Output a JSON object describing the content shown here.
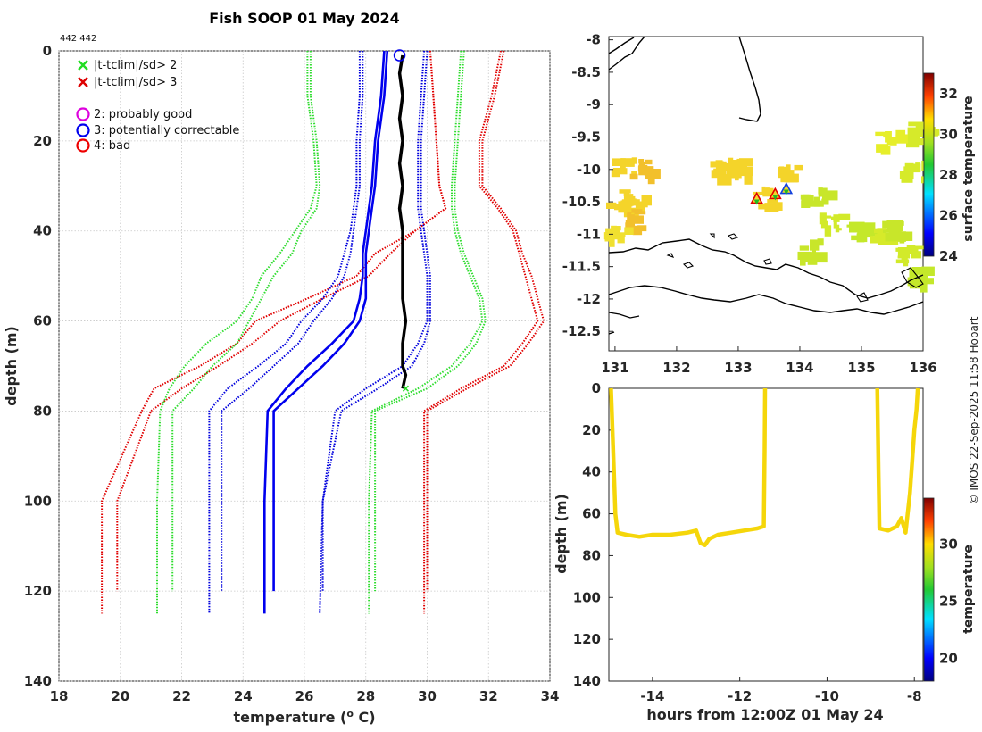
{
  "chart_data": [
    {
      "id": "profile",
      "type": "line",
      "title": "Fish SOOP 01 May 2024",
      "id_label": "442 442",
      "xlabel": "temperature (",
      "xlabel_sup": "o",
      "xlabel_end": " C)",
      "ylabel": "depth (m)",
      "xlim": [
        18,
        34
      ],
      "ylim": [
        140,
        0
      ],
      "xticks": [
        "18",
        "20",
        "22",
        "24",
        "26",
        "28",
        "30",
        "32",
        "34"
      ],
      "yticks": [
        "0",
        "20",
        "40",
        "60",
        "80",
        "100",
        "120",
        "140"
      ],
      "legend": [
        {
          "symbol": "x",
          "color": "#22dd22",
          "label": "|t-tclim|/sd> 2"
        },
        {
          "symbol": "x",
          "color": "#dd0000",
          "label": "|t-tclim|/sd> 3"
        },
        {
          "symbol": "o",
          "color": "#dd00dd",
          "label": "2: probably good"
        },
        {
          "symbol": "o",
          "color": "#0000ee",
          "label": "3: potentially correctable"
        },
        {
          "symbol": "o",
          "color": "#ee0000",
          "label": "4: bad"
        }
      ],
      "series": [
        {
          "name": "clim-3sd-low",
          "color": "#e00000",
          "style": "dotted",
          "x": [
            30.1,
            30.2,
            30.3,
            30.4,
            30.6,
            29.6,
            28.3,
            27.7,
            26.1,
            24.4,
            23.8,
            22.6,
            21.1,
            20.7,
            19.4,
            19.4
          ],
          "y": [
            0,
            10,
            20,
            30,
            35,
            40,
            45,
            50,
            55,
            60,
            65,
            70,
            75,
            80,
            100,
            125
          ]
        },
        {
          "name": "clim-3sd-low-b",
          "color": "#e00000",
          "style": "dotted",
          "x": [
            30.1,
            30.2,
            30.3,
            30.4,
            30.6,
            29.6,
            28.8,
            28.1,
            26.6,
            25.2,
            24.3,
            23.2,
            22.0,
            21.0,
            19.9,
            19.9
          ],
          "y": [
            0,
            10,
            20,
            30,
            35,
            40,
            45,
            50,
            55,
            60,
            65,
            70,
            75,
            80,
            100,
            120
          ]
        },
        {
          "name": "clim-2sd-low",
          "color": "#2fdd2f",
          "style": "dotted",
          "x": [
            26.1,
            26.1,
            26.3,
            26.4,
            26.2,
            25.7,
            25.2,
            24.6,
            24.3,
            23.8,
            22.8,
            22.1,
            21.6,
            21.3,
            21.2,
            21.2
          ],
          "y": [
            0,
            10,
            20,
            30,
            35,
            40,
            45,
            50,
            55,
            60,
            65,
            70,
            75,
            80,
            100,
            125
          ]
        },
        {
          "name": "clim-2sd-low-b",
          "color": "#2fdd2f",
          "style": "dotted",
          "x": [
            26.2,
            26.2,
            26.4,
            26.5,
            26.4,
            25.9,
            25.6,
            25.0,
            24.6,
            24.2,
            23.8,
            23.0,
            22.4,
            21.7,
            21.7,
            21.7
          ],
          "y": [
            0,
            10,
            20,
            30,
            35,
            40,
            45,
            50,
            55,
            60,
            65,
            70,
            75,
            80,
            100,
            120
          ]
        },
        {
          "name": "clim-1sd-low",
          "color": "#0000dd",
          "style": "dotted",
          "x": [
            27.8,
            27.8,
            27.7,
            27.7,
            27.6,
            27.5,
            27.3,
            27.1,
            26.6,
            25.9,
            25.4,
            24.5,
            23.5,
            22.9,
            22.9,
            22.9
          ],
          "y": [
            0,
            10,
            20,
            30,
            35,
            40,
            45,
            50,
            55,
            60,
            65,
            70,
            75,
            80,
            100,
            125
          ]
        },
        {
          "name": "clim-1sd-low-b",
          "color": "#0000dd",
          "style": "dotted",
          "x": [
            27.9,
            27.9,
            27.8,
            27.8,
            27.7,
            27.6,
            27.5,
            27.3,
            26.9,
            26.3,
            25.8,
            25.0,
            24.2,
            23.3,
            23.3,
            23.3
          ],
          "y": [
            0,
            10,
            20,
            30,
            35,
            40,
            45,
            50,
            55,
            60,
            65,
            70,
            75,
            80,
            100,
            120
          ]
        },
        {
          "name": "clim-mean",
          "color": "#0000ee",
          "style": "solid",
          "x": [
            28.6,
            28.5,
            28.3,
            28.2,
            28.1,
            28.0,
            27.9,
            27.9,
            27.8,
            27.6,
            26.9,
            26.1,
            25.4,
            24.8,
            24.7,
            24.7
          ],
          "y": [
            0,
            10,
            20,
            30,
            35,
            40,
            45,
            50,
            55,
            60,
            65,
            70,
            75,
            80,
            100,
            125
          ]
        },
        {
          "name": "clim-mean-b",
          "color": "#0000ee",
          "style": "solid",
          "x": [
            28.7,
            28.6,
            28.4,
            28.3,
            28.2,
            28.1,
            28.0,
            28.0,
            28.0,
            27.8,
            27.3,
            26.6,
            25.8,
            25.0,
            25.0,
            25.0
          ],
          "y": [
            0,
            10,
            20,
            30,
            35,
            40,
            45,
            50,
            55,
            60,
            65,
            70,
            75,
            80,
            100,
            120
          ]
        },
        {
          "name": "clim-1sd-high",
          "color": "#0000dd",
          "style": "dotted",
          "x": [
            29.9,
            29.8,
            29.7,
            29.7,
            29.7,
            29.8,
            29.9,
            30.0,
            30.0,
            30.0,
            29.7,
            29.2,
            28.0,
            27.0,
            26.6,
            26.5
          ],
          "y": [
            0,
            10,
            20,
            30,
            35,
            40,
            45,
            50,
            55,
            60,
            65,
            70,
            75,
            80,
            100,
            125
          ]
        },
        {
          "name": "clim-1sd-high-b",
          "color": "#0000dd",
          "style": "dotted",
          "x": [
            30.0,
            29.9,
            29.8,
            29.8,
            29.8,
            29.9,
            30.0,
            30.1,
            30.1,
            30.1,
            29.9,
            29.5,
            28.4,
            27.2,
            26.6,
            26.6
          ],
          "y": [
            0,
            10,
            20,
            30,
            35,
            40,
            45,
            50,
            55,
            60,
            65,
            70,
            75,
            80,
            100,
            120
          ]
        },
        {
          "name": "clim-2sd-high",
          "color": "#2fdd2f",
          "style": "dotted",
          "x": [
            31.1,
            31.0,
            30.9,
            30.8,
            30.8,
            30.9,
            31.1,
            31.4,
            31.7,
            31.8,
            31.4,
            30.8,
            29.7,
            28.2,
            28.1,
            28.1
          ],
          "y": [
            0,
            10,
            20,
            30,
            35,
            40,
            45,
            50,
            55,
            60,
            65,
            70,
            75,
            80,
            100,
            125
          ]
        },
        {
          "name": "clim-2sd-high-b",
          "color": "#2fdd2f",
          "style": "dotted",
          "x": [
            31.2,
            31.1,
            31.0,
            30.9,
            30.9,
            31.0,
            31.2,
            31.5,
            31.8,
            31.9,
            31.6,
            31.0,
            30.0,
            28.3,
            28.3,
            28.3
          ],
          "y": [
            0,
            10,
            20,
            30,
            35,
            40,
            45,
            50,
            55,
            60,
            65,
            70,
            75,
            80,
            100,
            120
          ]
        },
        {
          "name": "clim-3sd-high",
          "color": "#e00000",
          "style": "dotted",
          "x": [
            32.4,
            32.1,
            31.7,
            31.7,
            32.3,
            32.8,
            33.0,
            33.2,
            33.4,
            33.6,
            33.1,
            32.5,
            31.1,
            29.9,
            29.9,
            29.9
          ],
          "y": [
            0,
            10,
            20,
            30,
            35,
            40,
            45,
            50,
            55,
            60,
            65,
            70,
            75,
            80,
            100,
            125
          ]
        },
        {
          "name": "clim-3sd-high-b",
          "color": "#e00000",
          "style": "dotted",
          "x": [
            32.5,
            32.2,
            31.8,
            31.8,
            32.4,
            32.9,
            33.1,
            33.4,
            33.6,
            33.8,
            33.3,
            32.7,
            31.3,
            30.0,
            30.0,
            30.0
          ],
          "y": [
            0,
            10,
            20,
            30,
            35,
            40,
            45,
            50,
            55,
            60,
            65,
            70,
            75,
            80,
            100,
            120
          ]
        },
        {
          "name": "observed",
          "color": "#000000",
          "style": "solid",
          "x": [
            29.2,
            29.1,
            29.2,
            29.1,
            29.2,
            29.1,
            29.2,
            29.1,
            29.2,
            29.2,
            29.2,
            29.2,
            29.3,
            29.2,
            29.2,
            29.3,
            29.2
          ],
          "y": [
            1,
            5,
            10,
            15,
            20,
            25,
            30,
            35,
            40,
            45,
            50,
            55,
            60,
            65,
            70,
            72,
            75
          ]
        }
      ],
      "flags": [
        {
          "x": 29.1,
          "y": 1,
          "symbol": "o",
          "color": "#0000ee"
        },
        {
          "x": 29.3,
          "y": 75,
          "symbol": "x",
          "color": "#22dd22"
        }
      ]
    },
    {
      "id": "map",
      "type": "heatmap",
      "colorbar_label": "surface temperature",
      "xlim": [
        130.9,
        136
      ],
      "ylim": [
        -12.8,
        -7.95
      ],
      "xticks": [
        "131",
        "132",
        "133",
        "134",
        "135",
        "136"
      ],
      "yticks": [
        "-8",
        "-8.5",
        "-9",
        "-9.5",
        "-10",
        "-10.5",
        "-11",
        "-11.5",
        "-12",
        "-12.5"
      ],
      "cbar_ticks": [
        "24",
        "26",
        "28",
        "30",
        "32"
      ],
      "cbar_range": [
        24,
        33
      ],
      "patches": [
        {
          "lon": 131.1,
          "lat": -9.9,
          "color": "#f4d42a"
        },
        {
          "lon": 131.4,
          "lat": -9.95,
          "color": "#f2c02c"
        },
        {
          "lon": 131.3,
          "lat": -10.5,
          "color": "#f4d42a"
        },
        {
          "lon": 131.35,
          "lat": -10.75,
          "color": "#f2c02c"
        },
        {
          "lon": 131.0,
          "lat": -10.4,
          "color": "#f4d42a"
        },
        {
          "lon": 131.0,
          "lat": -11.0,
          "color": "#f0e030"
        },
        {
          "lon": 132.7,
          "lat": -9.95,
          "color": "#f4d42a"
        },
        {
          "lon": 133.0,
          "lat": -9.95,
          "color": "#f4d42a"
        },
        {
          "lon": 133.4,
          "lat": -10.4,
          "color": "#f4d42a"
        },
        {
          "lon": 133.8,
          "lat": -10.0,
          "color": "#f4d42a"
        },
        {
          "lon": 134.2,
          "lat": -10.4,
          "color": "#c8e62a"
        },
        {
          "lon": 134.5,
          "lat": -10.8,
          "color": "#d2ea2a"
        },
        {
          "lon": 134.9,
          "lat": -10.9,
          "color": "#c4e82a"
        },
        {
          "lon": 135.3,
          "lat": -11.0,
          "color": "#d6ea2a"
        },
        {
          "lon": 135.5,
          "lat": -10.9,
          "color": "#c8e62a"
        },
        {
          "lon": 135.7,
          "lat": -11.3,
          "color": "#d2ea2a"
        },
        {
          "lon": 135.9,
          "lat": -11.6,
          "color": "#c4e82a"
        },
        {
          "lon": 135.9,
          "lat": -9.4,
          "color": "#d6ea2a"
        },
        {
          "lon": 135.4,
          "lat": -9.5,
          "color": "#e6ee2a"
        },
        {
          "lon": 135.8,
          "lat": -10.0,
          "color": "#d6ea2a"
        },
        {
          "lon": 134.1,
          "lat": -11.2,
          "color": "#c8e62a"
        }
      ],
      "markers": [
        {
          "lon": 133.3,
          "lat": -10.45,
          "kind": "triangle",
          "color": "#e00000"
        },
        {
          "lon": 133.6,
          "lat": -10.38,
          "kind": "triangle",
          "color": "#e00000"
        },
        {
          "lon": 133.78,
          "lat": -10.3,
          "kind": "triangle",
          "color": "#1040e0"
        }
      ]
    },
    {
      "id": "timeseries",
      "type": "scatter",
      "xlabel": "hours from 12:00Z 01 May 24",
      "ylabel": "depth (m)",
      "colorbar_label": "temperature",
      "xlim": [
        -15,
        -7.8
      ],
      "ylim": [
        140,
        0
      ],
      "xticks": [
        "-14",
        "-12",
        "-10",
        "-8"
      ],
      "yticks": [
        "0",
        "20",
        "40",
        "60",
        "80",
        "100",
        "120",
        "140"
      ],
      "cbar_ticks": [
        "20",
        "25",
        "30"
      ],
      "cbar_range": [
        18,
        34
      ],
      "segments": [
        {
          "x": [
            -14.95,
            -14.9,
            -14.85,
            -14.8,
            -14.6,
            -14.3,
            -14.0,
            -13.6,
            -13.2,
            -13.0,
            -12.9,
            -12.8,
            -12.7,
            -12.5,
            -12.2,
            -11.9,
            -11.6,
            -11.45,
            -11.43,
            -11.42
          ],
          "y": [
            0,
            30,
            60,
            69,
            70,
            71,
            70,
            70,
            69,
            68,
            74,
            75,
            72,
            70,
            69,
            68,
            67,
            66,
            30,
            0
          ]
        },
        {
          "x": [
            -8.85,
            -8.82,
            -8.8,
            -8.6,
            -8.4,
            -8.3,
            -8.2,
            -8.1,
            -8.05,
            -8.0,
            -7.95,
            -7.92
          ],
          "y": [
            0,
            40,
            67,
            68,
            66,
            62,
            69,
            50,
            35,
            20,
            10,
            0
          ]
        }
      ]
    }
  ],
  "credit": "© IMOS 22-Sep-2025 11:58 Hobart"
}
